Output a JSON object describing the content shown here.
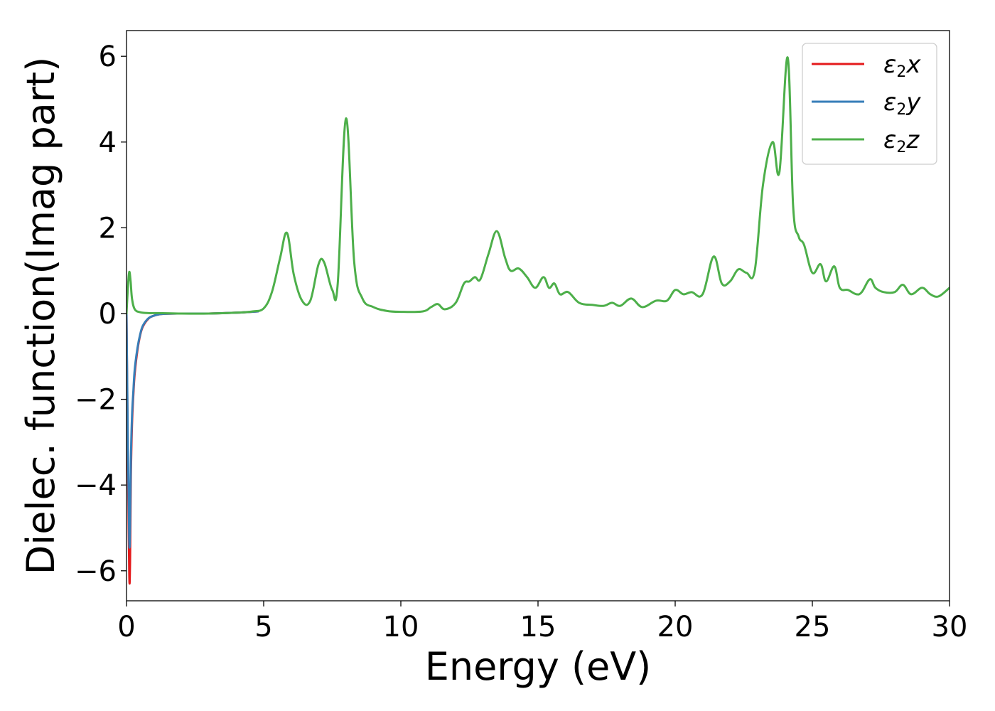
{
  "chart_data": {
    "type": "line",
    "title": "",
    "xlabel": "Energy (eV)",
    "ylabel": "Dielec. function(Imag part)",
    "xlim": [
      0,
      30
    ],
    "ylim": [
      -6.7,
      6.6
    ],
    "xticks": [
      0,
      5,
      10,
      15,
      20,
      25,
      30
    ],
    "yticks": [
      -6,
      -4,
      -2,
      0,
      2,
      4,
      6
    ],
    "xtick_labels": [
      "0",
      "5",
      "10",
      "15",
      "20",
      "25",
      "30"
    ],
    "ytick_labels": [
      "−6",
      "−4",
      "−2",
      "0",
      "2",
      "4",
      "6"
    ],
    "grid": false,
    "legend_position": "top-right",
    "series": [
      {
        "name": "x",
        "label_base": "ε",
        "label_sub": "2",
        "label_suffix": "x",
        "color": "#e41a1c",
        "x": [
          0,
          0.05,
          0.1,
          0.13,
          0.16,
          0.2,
          0.25,
          0.3,
          0.4,
          0.5,
          0.6,
          0.8,
          1.0,
          1.3,
          2,
          3,
          4,
          4.8
        ],
        "y": [
          0.0,
          -3.5,
          -6.1,
          -5.8,
          -3.8,
          -2.6,
          -1.9,
          -1.4,
          -0.85,
          -0.5,
          -0.3,
          -0.12,
          -0.05,
          -0.01,
          0.0,
          0.0,
          0.02,
          0.05
        ]
      },
      {
        "name": "y",
        "label_base": "ε",
        "label_sub": "2",
        "label_suffix": "y",
        "color": "#377eb8",
        "x": [
          0,
          0.05,
          0.1,
          0.13,
          0.16,
          0.2,
          0.25,
          0.3,
          0.4,
          0.5,
          0.6,
          0.8,
          1.0,
          1.3,
          2,
          3,
          4,
          4.8
        ],
        "y": [
          0.0,
          -3.0,
          -5.3,
          -5.0,
          -3.4,
          -2.4,
          -1.8,
          -1.3,
          -0.8,
          -0.48,
          -0.28,
          -0.11,
          -0.05,
          -0.01,
          0.0,
          0.0,
          0.02,
          0.05
        ]
      },
      {
        "name": "z",
        "label_base": "ε",
        "label_sub": "2",
        "label_suffix": "z",
        "color": "#4daf4a",
        "x": [
          0,
          0.05,
          0.1,
          0.15,
          0.2,
          0.3,
          0.5,
          0.8,
          1.2,
          2,
          3,
          4,
          4.6,
          5.0,
          5.3,
          5.6,
          5.85,
          6.1,
          6.4,
          6.7,
          7.0,
          7.2,
          7.5,
          7.7,
          8.0,
          8.3,
          8.6,
          9.0,
          9.5,
          10.0,
          10.8,
          11.1,
          11.35,
          11.6,
          12.0,
          12.3,
          12.5,
          12.7,
          12.9,
          13.2,
          13.5,
          13.8,
          14.0,
          14.3,
          14.6,
          14.9,
          15.2,
          15.4,
          15.6,
          15.8,
          16.1,
          16.5,
          17.0,
          17.4,
          17.7,
          18.0,
          18.4,
          18.8,
          19.3,
          19.7,
          20.0,
          20.3,
          20.6,
          21.0,
          21.4,
          21.7,
          22.0,
          22.3,
          22.6,
          22.9,
          23.2,
          23.55,
          23.8,
          24.1,
          24.3,
          24.5,
          24.7,
          25.0,
          25.3,
          25.5,
          25.8,
          26.0,
          26.3,
          26.6,
          26.8,
          27.1,
          27.3,
          27.6,
          28.0,
          28.3,
          28.6,
          29.0,
          29.3,
          29.6,
          30.0
        ],
        "y": [
          0.0,
          0.6,
          0.97,
          0.75,
          0.35,
          0.1,
          0.03,
          0.01,
          0.01,
          0.0,
          0.0,
          0.02,
          0.05,
          0.12,
          0.5,
          1.3,
          1.88,
          0.9,
          0.3,
          0.3,
          1.15,
          1.2,
          0.55,
          0.7,
          4.55,
          1.2,
          0.35,
          0.15,
          0.06,
          0.04,
          0.05,
          0.15,
          0.22,
          0.1,
          0.25,
          0.7,
          0.75,
          0.85,
          0.8,
          1.4,
          1.92,
          1.3,
          1.0,
          1.05,
          0.85,
          0.6,
          0.85,
          0.6,
          0.7,
          0.45,
          0.5,
          0.25,
          0.2,
          0.18,
          0.25,
          0.18,
          0.35,
          0.15,
          0.3,
          0.3,
          0.55,
          0.45,
          0.5,
          0.45,
          1.33,
          0.7,
          0.75,
          1.03,
          0.95,
          1.0,
          3.0,
          4.0,
          3.3,
          5.97,
          2.5,
          1.8,
          1.6,
          0.95,
          1.15,
          0.75,
          1.1,
          0.6,
          0.55,
          0.45,
          0.5,
          0.8,
          0.6,
          0.5,
          0.5,
          0.67,
          0.45,
          0.6,
          0.45,
          0.4,
          0.6
        ]
      }
    ]
  }
}
